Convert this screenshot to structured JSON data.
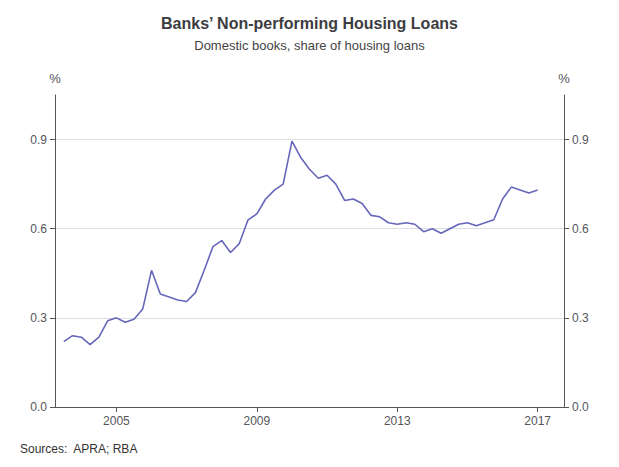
{
  "chart_data": {
    "type": "line",
    "title": "Banks’ Non-performing Housing Loans",
    "subtitle": "Domestic books, share of housing loans",
    "ylabel": "%",
    "y2label": "%",
    "source": "Sources:  APRA; RBA",
    "color": "#6666bb",
    "grid": true,
    "xlim": [
      2003.25,
      2017.75
    ],
    "xticks": [
      2005,
      2009,
      2013,
      2017
    ],
    "ylim": [
      0.0,
      1.05
    ],
    "yticks": [
      {
        "value": 0.0,
        "label": "0.0"
      },
      0.3,
      0.6,
      0.9
    ],
    "y2lim": [
      0.0,
      1.05
    ],
    "y2ticks": [
      {
        "value": 0.0,
        "label": "0.0"
      },
      0.3,
      0.6,
      0.9
    ],
    "x": [
      2003.5,
      2003.75,
      2004.0,
      2004.25,
      2004.5,
      2004.75,
      2005.0,
      2005.25,
      2005.5,
      2005.75,
      2006.0,
      2006.25,
      2006.5,
      2006.75,
      2007.0,
      2007.25,
      2007.5,
      2007.75,
      2008.0,
      2008.25,
      2008.5,
      2008.75,
      2009.0,
      2009.25,
      2009.5,
      2009.75,
      2010.0,
      2010.25,
      2010.5,
      2010.75,
      2011.0,
      2011.25,
      2011.5,
      2011.75,
      2012.0,
      2012.25,
      2012.5,
      2012.75,
      2013.0,
      2013.25,
      2013.5,
      2013.75,
      2014.0,
      2014.25,
      2014.5,
      2014.75,
      2015.0,
      2015.25,
      2015.5,
      2015.75,
      2016.0,
      2016.25,
      2016.5,
      2016.75,
      2017.0
    ],
    "values": [
      0.22,
      0.24,
      0.235,
      0.21,
      0.235,
      0.29,
      0.3,
      0.285,
      0.295,
      0.33,
      0.46,
      0.38,
      0.37,
      0.36,
      0.355,
      0.385,
      0.46,
      0.54,
      0.56,
      0.52,
      0.55,
      0.63,
      0.65,
      0.7,
      0.73,
      0.75,
      0.895,
      0.84,
      0.8,
      0.77,
      0.78,
      0.75,
      0.695,
      0.7,
      0.685,
      0.645,
      0.64,
      0.62,
      0.615,
      0.62,
      0.615,
      0.59,
      0.6,
      0.585,
      0.6,
      0.615,
      0.62,
      0.61,
      0.62,
      0.63,
      0.7,
      0.74,
      0.73,
      0.72,
      0.73
    ]
  }
}
